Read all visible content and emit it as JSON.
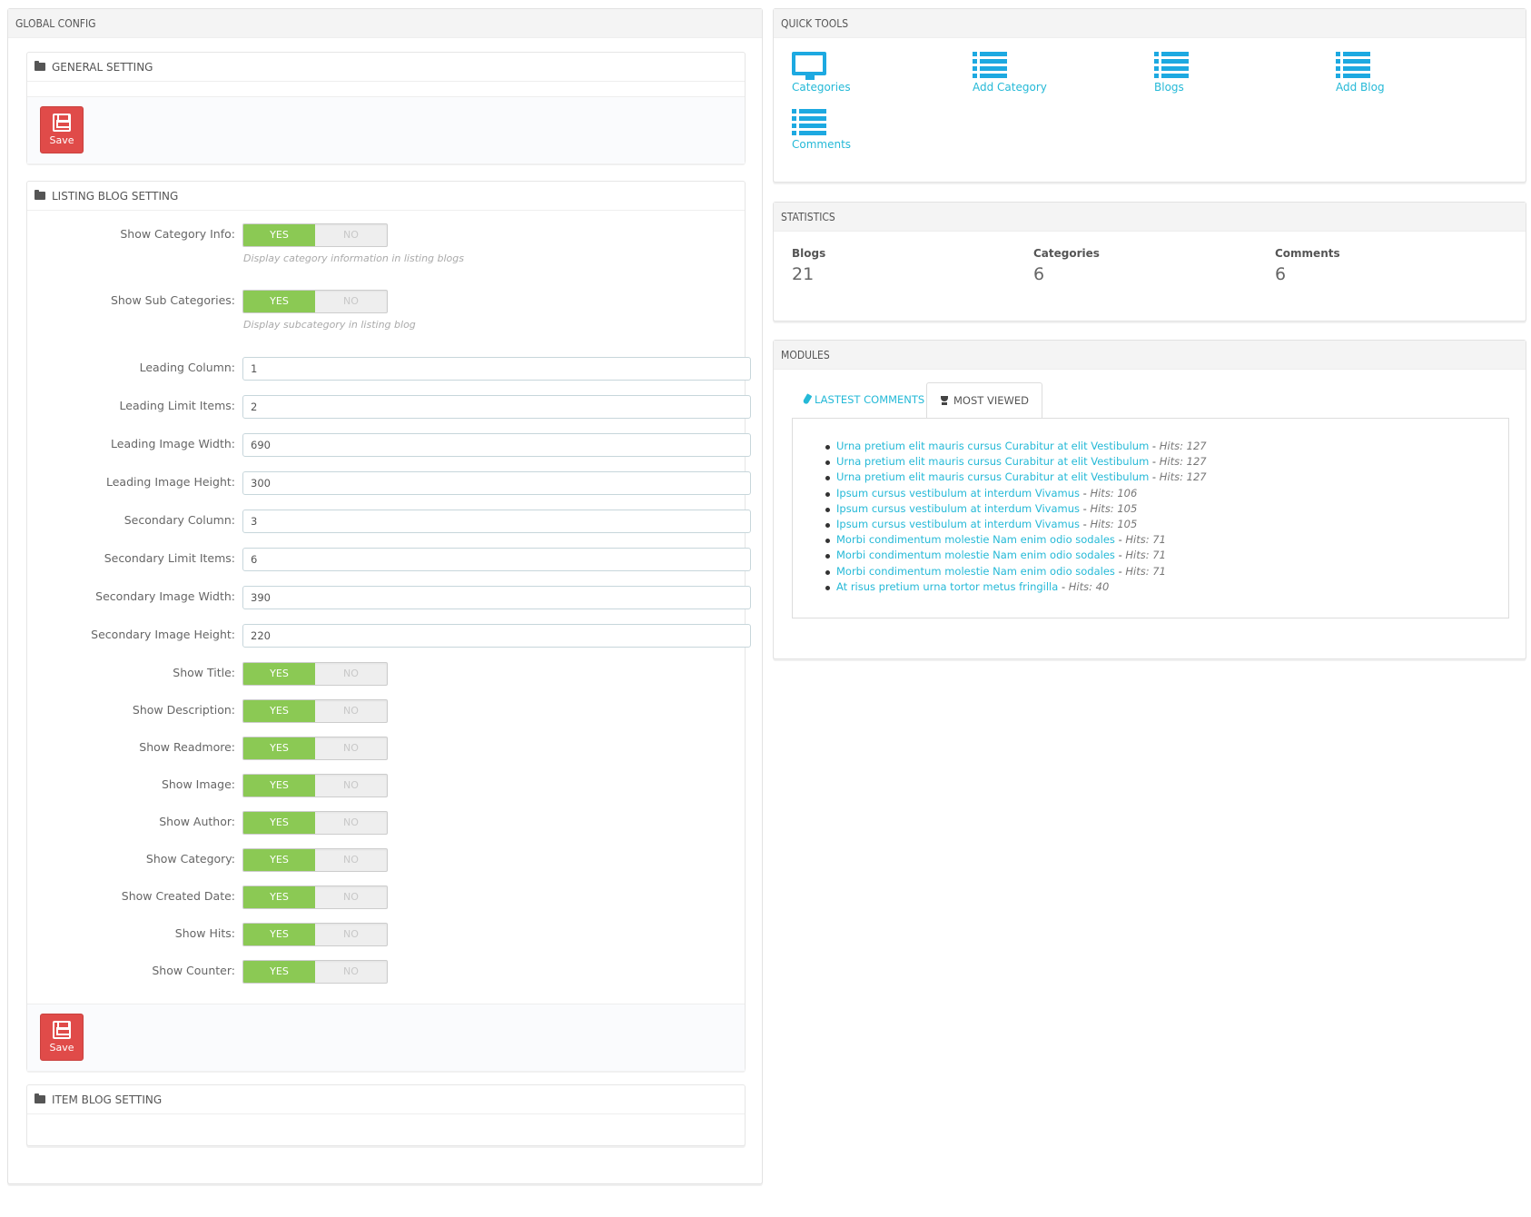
{
  "global_config": {
    "title": "GLOBAL CONFIG",
    "general_setting": {
      "title": "GENERAL SETTING",
      "save_label": "Save"
    },
    "listing_blog_setting": {
      "title": "LISTING BLOG SETTING",
      "toggles_top": [
        {
          "label": "Show Category Info:",
          "yes": "YES",
          "no": "NO",
          "value": "YES",
          "help": "Display category information in listing blogs"
        },
        {
          "label": "Show Sub Categories:",
          "yes": "YES",
          "no": "NO",
          "value": "YES",
          "help": "Display subcategory in listing blog"
        }
      ],
      "inputs": [
        {
          "label": "Leading Column:",
          "value": "1"
        },
        {
          "label": "Leading Limit Items:",
          "value": "2"
        },
        {
          "label": "Leading Image Width:",
          "value": "690"
        },
        {
          "label": "Leading Image Height:",
          "value": "300"
        },
        {
          "label": "Secondary Column:",
          "value": "3"
        },
        {
          "label": "Secondary Limit Items:",
          "value": "6"
        },
        {
          "label": "Secondary Image Width:",
          "value": "390"
        },
        {
          "label": "Secondary Image Height:",
          "value": "220"
        }
      ],
      "toggles": [
        {
          "label": "Show Title:",
          "yes": "YES",
          "no": "NO",
          "value": "YES"
        },
        {
          "label": "Show Description:",
          "yes": "YES",
          "no": "NO",
          "value": "YES"
        },
        {
          "label": "Show Readmore:",
          "yes": "YES",
          "no": "NO",
          "value": "YES"
        },
        {
          "label": "Show Image:",
          "yes": "YES",
          "no": "NO",
          "value": "YES"
        },
        {
          "label": "Show Author:",
          "yes": "YES",
          "no": "NO",
          "value": "YES"
        },
        {
          "label": "Show Category:",
          "yes": "YES",
          "no": "NO",
          "value": "YES"
        },
        {
          "label": "Show Created Date:",
          "yes": "YES",
          "no": "NO",
          "value": "YES"
        },
        {
          "label": "Show Hits:",
          "yes": "YES",
          "no": "NO",
          "value": "YES"
        },
        {
          "label": "Show Counter:",
          "yes": "YES",
          "no": "NO",
          "value": "YES"
        }
      ],
      "save_label": "Save"
    },
    "item_blog_setting": {
      "title": "ITEM BLOG SETTING"
    }
  },
  "quick_tools": {
    "title": "QUICK TOOLS",
    "items": [
      {
        "label": "Categories",
        "icon": "monitor-icon"
      },
      {
        "label": "Add Category",
        "icon": "list-icon"
      },
      {
        "label": "Blogs",
        "icon": "list-icon"
      },
      {
        "label": "Add Blog",
        "icon": "list-icon"
      },
      {
        "label": "Comments",
        "icon": "list-icon"
      }
    ]
  },
  "statistics": {
    "title": "STATISTICS",
    "items": [
      {
        "label": "Blogs",
        "value": "21"
      },
      {
        "label": "Categories",
        "value": "6"
      },
      {
        "label": "Comments",
        "value": "6"
      }
    ]
  },
  "modules": {
    "title": "MODULES",
    "tabs": [
      {
        "label": "LASTEST COMMENTS",
        "active": false
      },
      {
        "label": "MOST VIEWED",
        "active": true
      }
    ],
    "most_viewed": [
      {
        "title": "Urna pretium elit mauris cursus Curabitur at elit Vestibulum",
        "hits": "Hits: 127"
      },
      {
        "title": "Urna pretium elit mauris cursus Curabitur at elit Vestibulum",
        "hits": "Hits: 127"
      },
      {
        "title": "Urna pretium elit mauris cursus Curabitur at elit Vestibulum",
        "hits": "Hits: 127"
      },
      {
        "title": "Ipsum cursus vestibulum at interdum Vivamus",
        "hits": "Hits: 106"
      },
      {
        "title": "Ipsum cursus vestibulum at interdum Vivamus",
        "hits": "Hits: 105"
      },
      {
        "title": "Ipsum cursus vestibulum at interdum Vivamus",
        "hits": "Hits: 105"
      },
      {
        "title": "Morbi condimentum molestie Nam enim odio sodales",
        "hits": "Hits: 71"
      },
      {
        "title": "Morbi condimentum molestie Nam enim odio sodales",
        "hits": "Hits: 71"
      },
      {
        "title": "Morbi condimentum molestie Nam enim odio sodales",
        "hits": "Hits: 71"
      },
      {
        "title": "At risus pretium urna tortor metus fringilla",
        "hits": "Hits: 40"
      }
    ],
    "separator": " - "
  },
  "colors": {
    "accent": "#25b9d7",
    "icon_blue": "#1da9e1",
    "toggle_yes": "#8bc954",
    "save_red": "#e04b49"
  }
}
